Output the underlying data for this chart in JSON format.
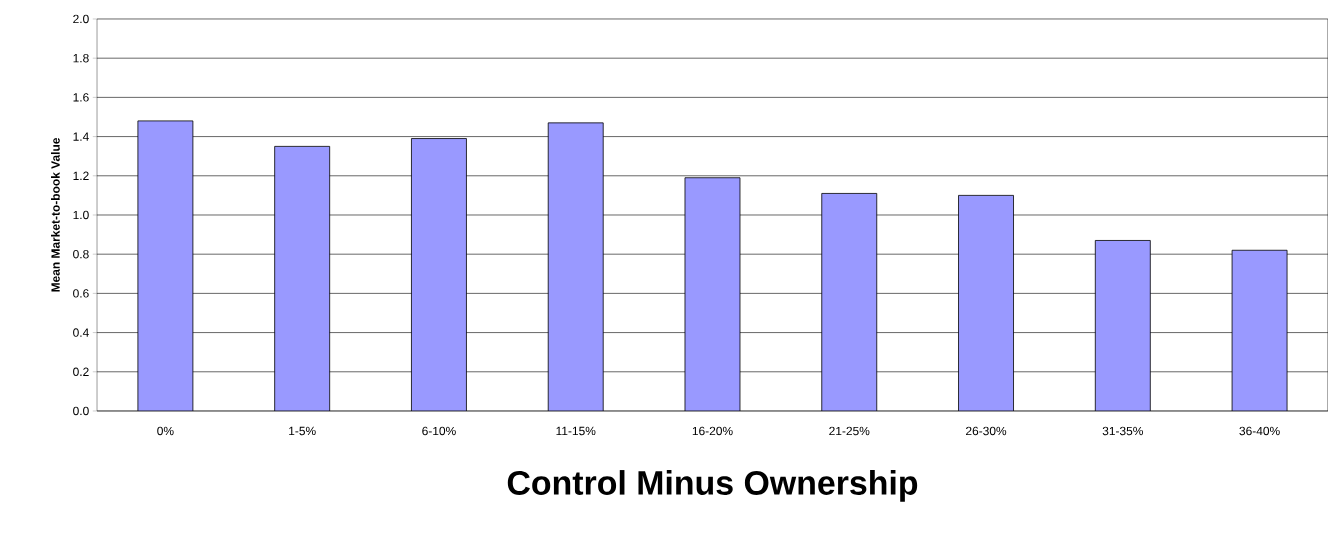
{
  "chart_data": {
    "type": "bar",
    "xlabel": "Control Minus Ownership",
    "ylabel": "Mean Market-to-book Value",
    "categories": [
      "0%",
      "1-5%",
      "6-10%",
      "11-15%",
      "16-20%",
      "21-25%",
      "26-30%",
      "31-35%",
      "36-40%"
    ],
    "values": [
      1.48,
      1.35,
      1.39,
      1.47,
      1.19,
      1.11,
      1.1,
      0.87,
      0.82
    ],
    "color": "#9999ff",
    "ylim": [
      0,
      2.0
    ],
    "yticks": [
      {
        "value": 0,
        "label": "0.0"
      },
      {
        "value": 0.2,
        "label": "0.2"
      },
      {
        "value": 0.4,
        "label": "0.4"
      },
      {
        "value": 0.6,
        "label": "0.6"
      },
      {
        "value": 0.8,
        "label": "0.8"
      },
      {
        "value": 1.0,
        "label": "1.0"
      },
      {
        "value": 1.2,
        "label": "1.2"
      },
      {
        "value": 1.4,
        "label": "1.4"
      },
      {
        "value": 1.6,
        "label": "1.6"
      },
      {
        "value": 1.8,
        "label": "1.8"
      },
      {
        "value": 2.0,
        "label": "2.0"
      }
    ],
    "grid": "y"
  }
}
